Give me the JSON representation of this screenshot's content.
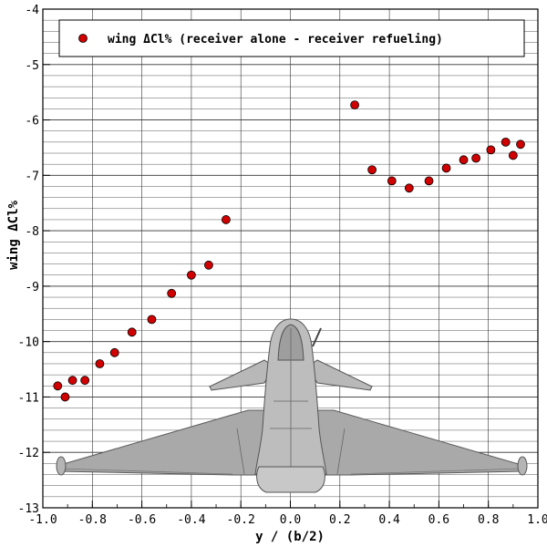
{
  "chart_data": {
    "type": "scatter",
    "xlabel": "y / (b/2)",
    "ylabel": "wing ΔCl%",
    "xlim": [
      -1.0,
      1.0
    ],
    "ylim": [
      -13,
      -4
    ],
    "x_ticks": [
      -1.0,
      -0.8,
      -0.6,
      -0.4,
      -0.2,
      0.0,
      0.2,
      0.4,
      0.6,
      0.8,
      1.0
    ],
    "x_tick_labels": [
      "-1.0",
      "-0.8",
      "-0.6",
      "-0.4",
      "-0.2",
      "0.0",
      "0.2",
      "0.4",
      "0.6",
      "0.8",
      "1.0"
    ],
    "y_ticks": [
      -13,
      -12,
      -11,
      -10,
      -9,
      -8,
      -7,
      -6,
      -5,
      -4
    ],
    "y_tick_labels": [
      "-13",
      "-12",
      "-11",
      "-10",
      "-9",
      "-8",
      "-7",
      "-6",
      "-5",
      "-4"
    ],
    "grid": true,
    "legend_position": "top",
    "marker_color": "#d10000",
    "series": [
      {
        "name": "wing ΔCl% (receiver alone - receiver refueling)",
        "points": [
          {
            "x": -0.94,
            "y": -10.8
          },
          {
            "x": -0.91,
            "y": -11.0
          },
          {
            "x": -0.88,
            "y": -10.7
          },
          {
            "x": -0.83,
            "y": -10.7
          },
          {
            "x": -0.77,
            "y": -10.4
          },
          {
            "x": -0.71,
            "y": -10.2
          },
          {
            "x": -0.64,
            "y": -9.83
          },
          {
            "x": -0.56,
            "y": -9.6
          },
          {
            "x": -0.48,
            "y": -9.13
          },
          {
            "x": -0.4,
            "y": -8.8
          },
          {
            "x": -0.33,
            "y": -8.62
          },
          {
            "x": -0.26,
            "y": -7.8
          },
          {
            "x": 0.26,
            "y": -5.73
          },
          {
            "x": 0.33,
            "y": -6.9
          },
          {
            "x": 0.41,
            "y": -7.1
          },
          {
            "x": 0.48,
            "y": -7.23
          },
          {
            "x": 0.56,
            "y": -7.1
          },
          {
            "x": 0.63,
            "y": -6.87
          },
          {
            "x": 0.7,
            "y": -6.72
          },
          {
            "x": 0.75,
            "y": -6.69
          },
          {
            "x": 0.81,
            "y": -6.54
          },
          {
            "x": 0.87,
            "y": -6.4
          },
          {
            "x": 0.9,
            "y": -6.64
          },
          {
            "x": 0.93,
            "y": -6.44
          }
        ]
      }
    ]
  }
}
